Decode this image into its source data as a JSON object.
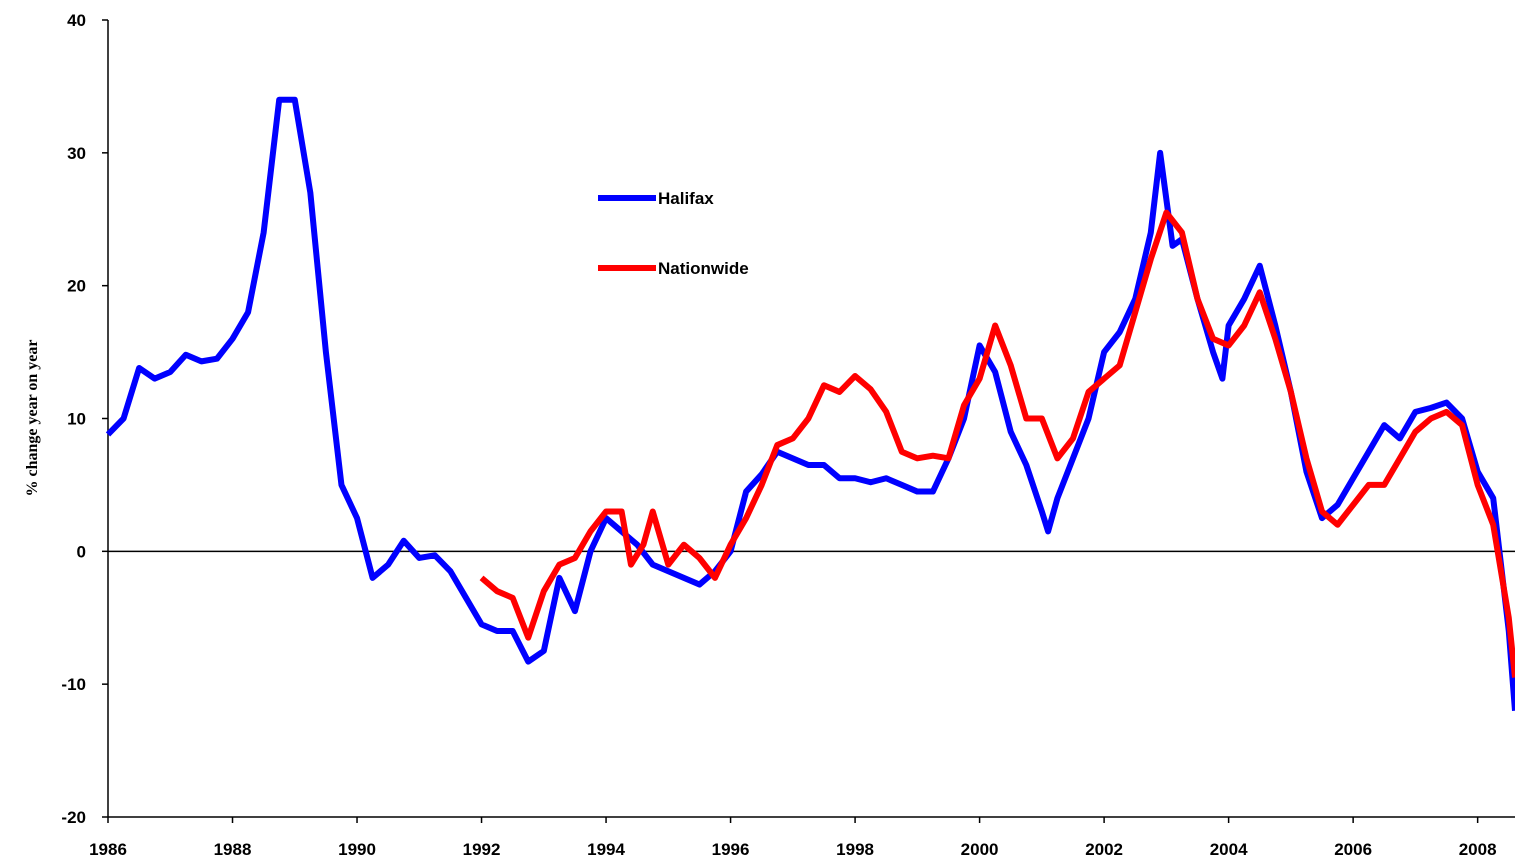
{
  "chart_data": {
    "type": "line",
    "ylabel": "% change year on year",
    "xlim": [
      1986,
      2008.6
    ],
    "xticks": [
      1986,
      1988,
      1990,
      1992,
      1994,
      1996,
      1998,
      2000,
      2002,
      2004,
      2006,
      2008
    ],
    "ylim": [
      -20,
      40
    ],
    "yticks": [
      -20,
      -10,
      0,
      10,
      20,
      30,
      40
    ],
    "series": [
      {
        "name": "Halifax",
        "color": "#0000ff",
        "x": [
          1986.0,
          1986.25,
          1986.5,
          1986.75,
          1987.0,
          1987.25,
          1987.5,
          1987.75,
          1988.0,
          1988.25,
          1988.5,
          1988.75,
          1989.0,
          1989.25,
          1989.5,
          1989.75,
          1990.0,
          1990.25,
          1990.5,
          1990.75,
          1991.0,
          1991.25,
          1991.5,
          1991.75,
          1992.0,
          1992.25,
          1992.5,
          1992.75,
          1993.0,
          1993.25,
          1993.5,
          1993.75,
          1994.0,
          1994.25,
          1994.5,
          1994.75,
          1995.0,
          1995.25,
          1995.5,
          1995.75,
          1996.0,
          1996.25,
          1996.5,
          1996.75,
          1997.0,
          1997.25,
          1997.5,
          1997.75,
          1998.0,
          1998.25,
          1998.5,
          1998.75,
          1999.0,
          1999.25,
          1999.5,
          1999.75,
          2000.0,
          2000.25,
          2000.5,
          2000.75,
          2001.0,
          2001.1,
          2001.25,
          2001.5,
          2001.75,
          2002.0,
          2002.25,
          2002.5,
          2002.75,
          2002.9,
          2003.1,
          2003.25,
          2003.5,
          2003.75,
          2003.9,
          2004.0,
          2004.25,
          2004.5,
          2004.75,
          2005.0,
          2005.25,
          2005.5,
          2005.75,
          2006.0,
          2006.25,
          2006.5,
          2006.75,
          2007.0,
          2007.25,
          2007.5,
          2007.75,
          2008.0,
          2008.25,
          2008.5,
          2008.6
        ],
        "values": [
          8.8,
          10,
          13.8,
          13,
          13.5,
          14.8,
          14.3,
          14.5,
          16,
          18,
          24,
          34,
          34,
          27,
          15,
          5,
          2.5,
          -2,
          -1,
          0.8,
          -0.5,
          -0.3,
          -1.5,
          -3.5,
          -5.5,
          -6,
          -6,
          -8.3,
          -7.5,
          -2,
          -4.5,
          0,
          2.5,
          1.5,
          0.5,
          -1,
          -1.5,
          -2,
          -2.5,
          -1.5,
          0,
          4.5,
          5.8,
          7.5,
          7,
          6.5,
          6.5,
          5.5,
          5.5,
          5.2,
          5.5,
          5,
          4.5,
          4.5,
          7,
          10,
          15.5,
          13.5,
          9,
          6.5,
          3,
          1.5,
          4,
          7,
          10,
          15,
          16.5,
          19,
          24,
          30,
          23,
          23.5,
          19,
          15,
          13,
          17,
          19,
          21.5,
          17,
          12,
          6,
          2.5,
          3.5,
          5.5,
          7.5,
          9.5,
          8.5,
          10.5,
          10.8,
          11.2,
          10,
          6,
          4,
          -6,
          -12
        ]
      },
      {
        "name": "Nationwide",
        "color": "#ff0000",
        "x": [
          1992.0,
          1992.25,
          1992.5,
          1992.75,
          1993.0,
          1993.25,
          1993.5,
          1993.75,
          1994.0,
          1994.25,
          1994.4,
          1994.6,
          1994.75,
          1995.0,
          1995.25,
          1995.5,
          1995.75,
          1996.0,
          1996.25,
          1996.5,
          1996.75,
          1997.0,
          1997.25,
          1997.5,
          1997.75,
          1998.0,
          1998.25,
          1998.5,
          1998.75,
          1999.0,
          1999.25,
          1999.5,
          1999.75,
          2000.0,
          2000.25,
          2000.5,
          2000.75,
          2001.0,
          2001.25,
          2001.5,
          2001.75,
          2002.0,
          2002.25,
          2002.5,
          2002.75,
          2003.0,
          2003.25,
          2003.5,
          2003.75,
          2004.0,
          2004.25,
          2004.5,
          2004.75,
          2005.0,
          2005.25,
          2005.5,
          2005.75,
          2006.0,
          2006.25,
          2006.5,
          2006.75,
          2007.0,
          2007.25,
          2007.5,
          2007.75,
          2008.0,
          2008.25,
          2008.5,
          2008.6
        ],
        "values": [
          -2,
          -3,
          -3.5,
          -6.5,
          -3,
          -1,
          -0.5,
          1.5,
          3,
          3,
          -1,
          0.5,
          3,
          -1,
          0.5,
          -0.5,
          -2,
          0.5,
          2.5,
          5,
          8,
          8.5,
          10,
          12.5,
          12,
          13.2,
          12.2,
          10.5,
          7.5,
          7,
          7.2,
          7,
          11,
          13,
          17,
          14,
          10,
          10,
          7,
          8.5,
          12,
          13,
          14,
          18,
          22,
          25.5,
          24,
          19,
          16,
          15.5,
          17,
          19.5,
          16,
          12,
          7,
          3,
          2,
          3.5,
          5,
          5,
          7,
          9,
          10,
          10.5,
          9.5,
          5,
          2,
          -5,
          -9.5
        ]
      }
    ]
  }
}
